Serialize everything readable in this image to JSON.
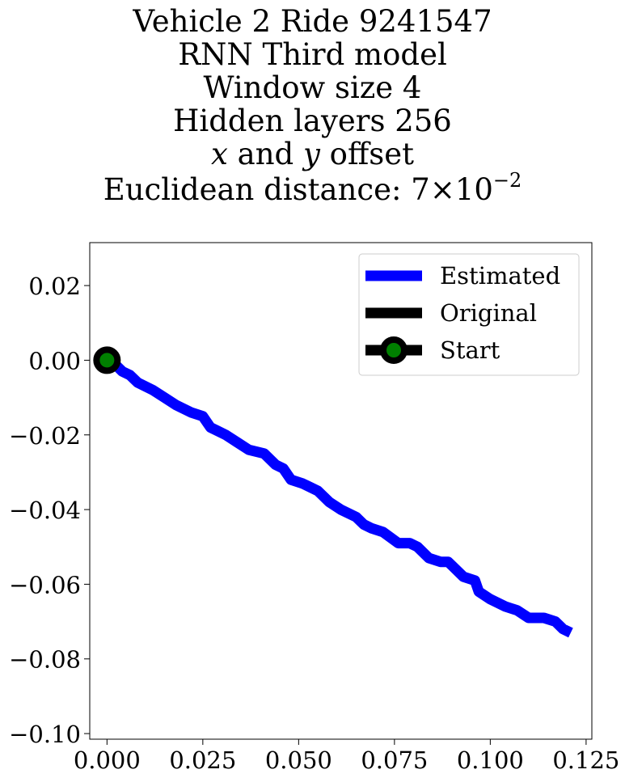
{
  "chart_data": {
    "type": "line",
    "title_lines": [
      "Vehicle 2 Ride 9241547",
      "RNN Third model",
      "Window size 4",
      "Hidden layers 256"
    ],
    "offset_line": {
      "x_var": "x",
      "conj": " and ",
      "y_var": "y",
      "rest": " offset"
    },
    "distance_line": {
      "label": "Euclidean distance: ",
      "mantissa": "7",
      "times": "×",
      "base": "10",
      "exponent": "−2"
    },
    "xlabel": "",
    "ylabel": "",
    "xlim": [
      -0.0045,
      0.1265
    ],
    "ylim": [
      -0.1015,
      0.0315
    ],
    "x_ticks": [
      0.0,
      0.025,
      0.05,
      0.075,
      0.1,
      0.125
    ],
    "x_tick_labels": [
      "0.000",
      "0.025",
      "0.050",
      "0.075",
      "0.100",
      "0.125"
    ],
    "y_ticks": [
      0.02,
      0.0,
      -0.02,
      -0.04,
      -0.06,
      -0.08,
      -0.1
    ],
    "y_tick_labels": [
      "0.02",
      "0.00",
      "−0.02",
      "−0.04",
      "−0.06",
      "−0.08",
      "−0.10"
    ],
    "grid": false,
    "legend_position": "top-right",
    "legend": [
      "Estimated",
      "Original",
      "Start"
    ],
    "series": [
      {
        "name": "Estimated",
        "color": "#0000ff",
        "x": [
          0.0,
          0.002,
          0.004,
          0.006,
          0.008,
          0.012,
          0.015,
          0.018,
          0.022,
          0.025,
          0.027,
          0.029,
          0.031,
          0.034,
          0.037,
          0.041,
          0.044,
          0.046,
          0.048,
          0.051,
          0.053,
          0.055,
          0.058,
          0.061,
          0.065,
          0.067,
          0.069,
          0.072,
          0.076,
          0.079,
          0.081,
          0.084,
          0.087,
          0.089,
          0.09,
          0.093,
          0.096,
          0.097,
          0.1,
          0.104,
          0.107,
          0.11,
          0.114,
          0.117,
          0.119,
          0.121
        ],
        "y": [
          0.0,
          -0.001,
          -0.003,
          -0.004,
          -0.006,
          -0.008,
          -0.01,
          -0.012,
          -0.014,
          -0.015,
          -0.018,
          -0.019,
          -0.02,
          -0.022,
          -0.024,
          -0.025,
          -0.028,
          -0.029,
          -0.032,
          -0.033,
          -0.034,
          -0.035,
          -0.038,
          -0.04,
          -0.042,
          -0.044,
          -0.045,
          -0.046,
          -0.049,
          -0.049,
          -0.05,
          -0.053,
          -0.054,
          -0.054,
          -0.055,
          -0.058,
          -0.059,
          -0.062,
          -0.064,
          -0.066,
          -0.067,
          -0.069,
          -0.069,
          -0.07,
          -0.072,
          -0.073
        ]
      },
      {
        "name": "Original",
        "color": "#000000",
        "x": [
          0.0,
          0.001
        ],
        "y": [
          0.0,
          0.001
        ]
      },
      {
        "name": "Start",
        "color": "#000000",
        "marker_fill": "#008000",
        "x": [
          0.0
        ],
        "y": [
          0.0
        ]
      }
    ]
  }
}
